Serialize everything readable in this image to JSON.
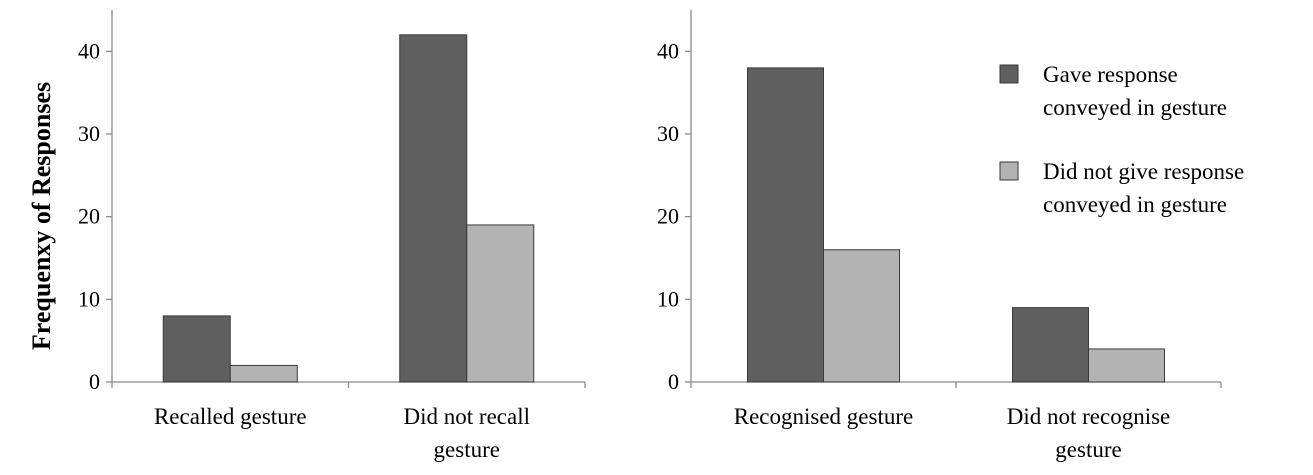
{
  "chart_data": [
    {
      "type": "bar",
      "ylabel": "Frequenxy of Responses",
      "ylim": [
        0,
        45
      ],
      "yticks": [
        "0",
        "10",
        "20",
        "30",
        "40"
      ],
      "categories": [
        [
          "Recalled gesture"
        ],
        [
          "Did not recall",
          "gesture"
        ]
      ],
      "series": [
        {
          "values": [
            8,
            42
          ],
          "color": "#5f5f5f"
        },
        {
          "values": [
            2,
            19
          ],
          "color": "#b3b3b3"
        }
      ]
    },
    {
      "type": "bar",
      "ylim": [
        0,
        45
      ],
      "yticks": [
        "0",
        "10",
        "20",
        "30",
        "40"
      ],
      "categories": [
        [
          "Recognised gesture"
        ],
        [
          "Did not recognise",
          "gesture"
        ]
      ],
      "series": [
        {
          "name": [
            "Gave response",
            "conveyed in gesture"
          ],
          "values": [
            38,
            9
          ],
          "color": "#5f5f5f"
        },
        {
          "name": [
            "Did not give response",
            "conveyed in gesture"
          ],
          "values": [
            16,
            4
          ],
          "color": "#b3b3b3"
        }
      ],
      "legend": "top-right"
    }
  ]
}
